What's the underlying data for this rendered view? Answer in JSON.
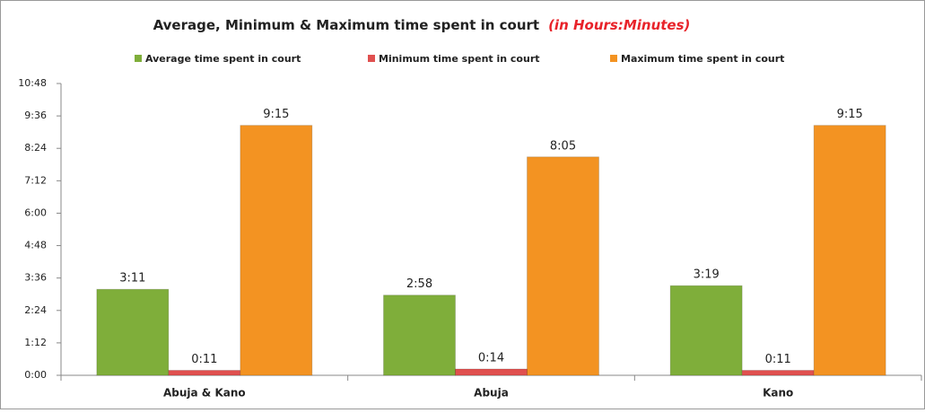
{
  "chart_data": {
    "type": "bar",
    "title": "Average, Minimum & Maximum time spent in court",
    "subtitle": "(in Hours:Minutes)",
    "categories": [
      "Abuja & Kano",
      "Abuja",
      "Kano"
    ],
    "series": [
      {
        "name": "Average time spent in court",
        "color": "#7fae3a",
        "values": [
          191,
          178,
          199
        ],
        "value_labels": [
          "3:11",
          "2:58",
          "3:19"
        ]
      },
      {
        "name": "Minimum time spent in court",
        "color": "#e0504f",
        "values": [
          11,
          14,
          11
        ],
        "value_labels": [
          "0:11",
          "0:14",
          "0:11"
        ]
      },
      {
        "name": "Maximum time spent in court",
        "color": "#f39322",
        "values": [
          555,
          485,
          555
        ],
        "value_labels": [
          "9:15",
          "8:05",
          "9:15"
        ]
      }
    ],
    "ylim": [
      0,
      648
    ],
    "yticks": [
      {
        "value": 0,
        "label": "0:00"
      },
      {
        "value": 72,
        "label": "1:12"
      },
      {
        "value": 144,
        "label": "2:24"
      },
      {
        "value": 216,
        "label": "3:36"
      },
      {
        "value": 288,
        "label": "4:48"
      },
      {
        "value": 360,
        "label": "6:00"
      },
      {
        "value": 432,
        "label": "7:12"
      },
      {
        "value": 504,
        "label": "8:24"
      },
      {
        "value": 576,
        "label": "9:36"
      },
      {
        "value": 648,
        "label": "10:48"
      }
    ],
    "grid": false,
    "legend": "top"
  }
}
